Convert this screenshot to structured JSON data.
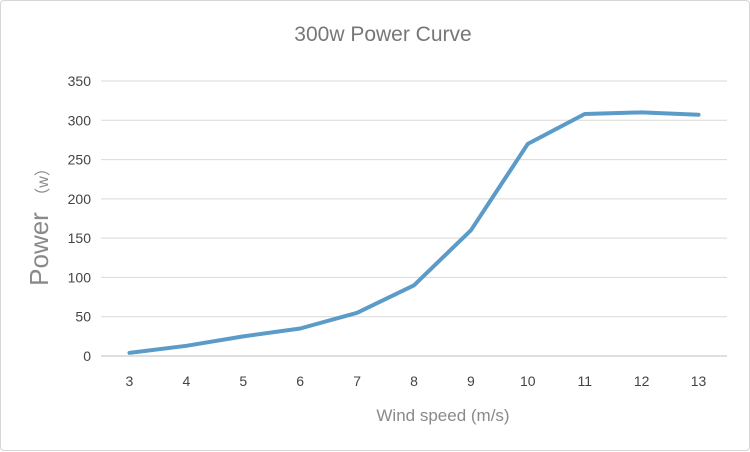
{
  "chart_data": {
    "type": "line",
    "title": "300w Power Curve",
    "xlabel": "Wind speed (m/s)",
    "ylabel_main": "Power",
    "ylabel_unit": "（w）",
    "x": [
      3,
      4,
      5,
      6,
      7,
      8,
      9,
      10,
      11,
      12,
      13
    ],
    "series": [
      {
        "values": [
          4,
          13,
          25,
          35,
          55,
          90,
          160,
          270,
          308,
          310,
          307
        ]
      }
    ],
    "y_ticks": [
      "0",
      "50",
      "100",
      "150",
      "200",
      "250",
      "300",
      "350"
    ],
    "ylim": [
      0,
      350
    ],
    "grid": true,
    "legend": "none",
    "line_color": "#5b9bc8"
  }
}
